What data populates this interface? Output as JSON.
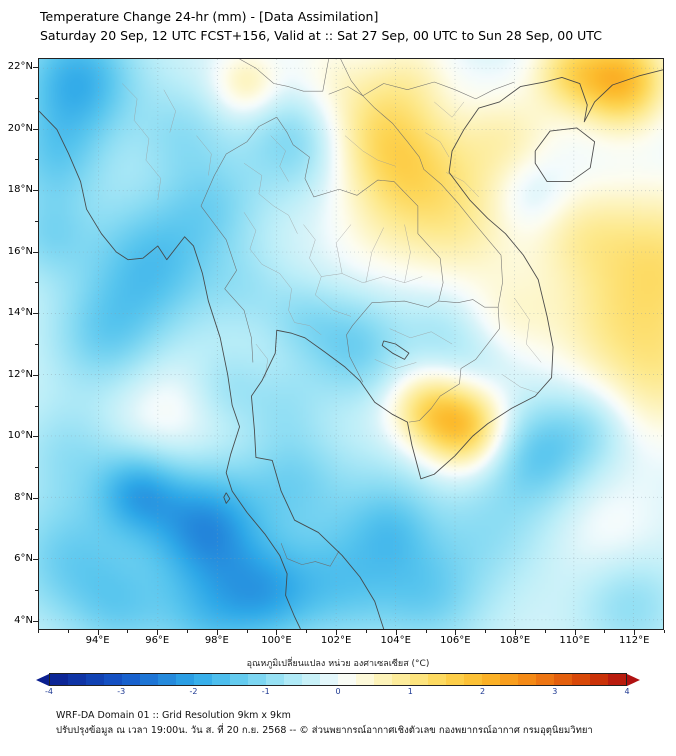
{
  "header": {
    "title": "Temperature Change 24-hr (mm) - [Data Assimilation]",
    "subtitle": "Saturday 20 Sep, 12 UTC FCST+156, Valid at :: Sat 27 Sep, 00 UTC to Sun 28 Sep, 00 UTC"
  },
  "footer": {
    "line1": "WRF-DA Domain 01 :: Grid Resolution 9km x 9km",
    "line2": "ปรับปรุงข้อมูล ณ เวลา 19:00น. วัน ส. ที่ 20 ก.ย. 2568 -- © ส่วนพยากรณ์อากาศเชิงตัวเลข กองพยากรณ์อากาศ กรมอุตุนิยมวิทยา"
  },
  "chart_data": {
    "type": "heatmap",
    "title": "Temperature Change 24-hr (mm) - [Data Assimilation]",
    "subtitle": "Saturday 20 Sep, 12 UTC FCST+156, Valid at :: Sat 27 Sep, 00 UTC to Sun 28 Sep, 00 UTC",
    "x_axis": {
      "ticks": [
        94,
        96,
        98,
        100,
        102,
        104,
        106,
        108,
        110,
        112
      ],
      "suffix": "°E",
      "range": [
        92.0,
        113.0
      ]
    },
    "y_axis": {
      "ticks": [
        4,
        6,
        8,
        10,
        12,
        14,
        16,
        18,
        20,
        22
      ],
      "suffix": "°N",
      "range": [
        3.7,
        22.3
      ]
    },
    "colorbar": {
      "title": "อุณหภูมิเปลี่ยนแปลง หน่วย องศาเซลเซียส (°C)",
      "units": "°C",
      "range": [
        -4,
        4
      ],
      "ticks": [
        -4,
        -3,
        -2,
        -1,
        0,
        1,
        2,
        3,
        4
      ],
      "stops": [
        [
          -4.0,
          "#0b1f8f"
        ],
        [
          -3.0,
          "#1557c9"
        ],
        [
          -2.0,
          "#2ea8e8"
        ],
        [
          -1.5,
          "#57c5ee"
        ],
        [
          -1.0,
          "#8adcf3"
        ],
        [
          -0.5,
          "#bceef8"
        ],
        [
          -0.2,
          "#d9f4f9"
        ],
        [
          0.0,
          "#f3fbfd"
        ],
        [
          0.2,
          "#fdfdf0"
        ],
        [
          0.5,
          "#fdf6c8"
        ],
        [
          1.0,
          "#fde98c"
        ],
        [
          1.5,
          "#fdd553"
        ],
        [
          2.0,
          "#fcba2c"
        ],
        [
          2.5,
          "#f79518"
        ],
        [
          3.0,
          "#e96a10"
        ],
        [
          3.5,
          "#d23d05"
        ],
        [
          4.0,
          "#b01111"
        ]
      ]
    },
    "field": {
      "units": "°C",
      "base": -0.25,
      "blobs": [
        [
          111.6,
          21.6,
          1.1,
          2.2
        ],
        [
          109.8,
          21.9,
          0.9,
          1.1
        ],
        [
          104.3,
          18.8,
          1.5,
          1.4
        ],
        [
          103.2,
          20.4,
          1.3,
          0.8
        ],
        [
          106.2,
          16.9,
          1.5,
          0.9
        ],
        [
          112.9,
          15.6,
          1.8,
          1.4
        ],
        [
          112.8,
          12.0,
          1.6,
          1.0
        ],
        [
          110.6,
          13.6,
          1.3,
          0.5
        ],
        [
          106.3,
          10.3,
          1.0,
          2.0
        ],
        [
          104.9,
          10.9,
          0.9,
          1.1
        ],
        [
          99.0,
          21.5,
          0.8,
          0.9
        ],
        [
          104.6,
          21.9,
          1.0,
          0.5
        ],
        [
          107.8,
          19.7,
          1.2,
          0.8
        ],
        [
          110.1,
          16.6,
          1.2,
          0.7
        ],
        [
          96.2,
          10.8,
          1.3,
          0.45
        ],
        [
          107.9,
          13.9,
          1.1,
          0.55
        ],
        [
          111.2,
          6.9,
          1.3,
          0.35
        ],
        [
          103.2,
          16.3,
          1.2,
          0.3
        ],
        [
          101.6,
          21.9,
          1.0,
          0.4
        ],
        [
          93.3,
          21.6,
          1.4,
          -1.6
        ],
        [
          92.5,
          19.0,
          1.2,
          -0.9
        ],
        [
          95.8,
          15.6,
          1.6,
          -1.3
        ],
        [
          94.2,
          13.2,
          1.3,
          -0.9
        ],
        [
          92.3,
          16.5,
          1.0,
          -0.7
        ],
        [
          97.9,
          17.6,
          1.2,
          -0.7
        ],
        [
          96.8,
          19.9,
          1.1,
          -0.6
        ],
        [
          100.6,
          19.6,
          1.2,
          -0.9
        ],
        [
          102.6,
          12.9,
          1.2,
          -1.0
        ],
        [
          100.8,
          13.8,
          0.9,
          -0.5
        ],
        [
          100.2,
          11.0,
          1.0,
          -0.45
        ],
        [
          98.3,
          11.6,
          0.9,
          -0.5
        ],
        [
          99.0,
          14.8,
          1.0,
          -0.4
        ],
        [
          97.6,
          7.0,
          1.4,
          -2.0
        ],
        [
          95.3,
          8.2,
          1.0,
          -1.4
        ],
        [
          99.6,
          4.8,
          1.2,
          -1.3
        ],
        [
          102.2,
          5.3,
          1.5,
          -1.1
        ],
        [
          105.2,
          4.8,
          1.3,
          -0.9
        ],
        [
          104.0,
          6.9,
          1.0,
          -0.5
        ],
        [
          107.2,
          7.0,
          1.4,
          -0.6
        ],
        [
          108.8,
          9.4,
          1.2,
          -1.1
        ],
        [
          110.6,
          10.3,
          1.0,
          -0.6
        ],
        [
          100.6,
          8.6,
          1.2,
          -0.8
        ],
        [
          103.6,
          7.8,
          1.3,
          -0.5
        ],
        [
          93.0,
          6.0,
          1.5,
          -1.0
        ],
        [
          94.8,
          4.3,
          1.2,
          -0.8
        ],
        [
          97.6,
          4.0,
          1.2,
          -0.9
        ],
        [
          93.0,
          9.5,
          1.2,
          -0.6
        ],
        [
          105.6,
          13.4,
          1.0,
          -0.45
        ],
        [
          108.6,
          17.9,
          0.9,
          -0.5
        ],
        [
          111.9,
          4.5,
          1.2,
          -0.7
        ],
        [
          106.9,
          12.3,
          0.9,
          -0.3
        ]
      ]
    }
  }
}
